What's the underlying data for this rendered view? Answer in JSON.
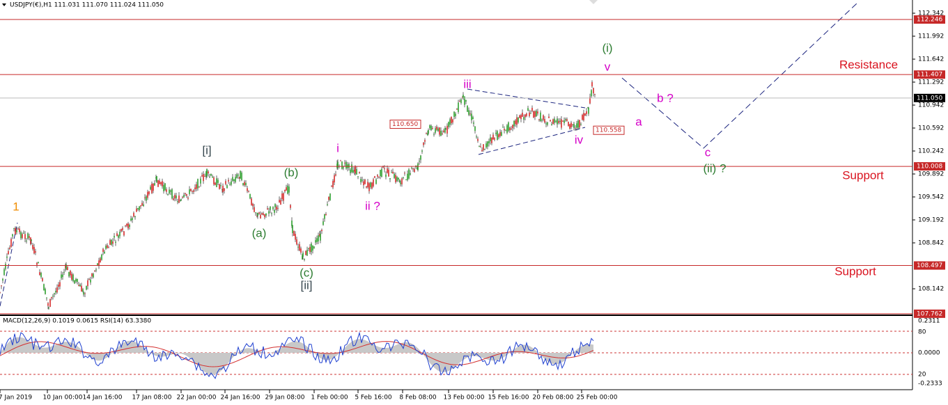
{
  "header": "USDJPY(€),H1  111.031 111.070 111.024 111.050",
  "price_axis": {
    "ticks": [
      112.342,
      111.992,
      111.642,
      111.292,
      110.942,
      110.592,
      110.242,
      109.892,
      109.542,
      109.192,
      108.842,
      108.142
    ]
  },
  "levels": [
    {
      "value": 112.246,
      "kind": "red"
    },
    {
      "value": 111.407,
      "kind": "red"
    },
    {
      "value": {
        "value": 111.05,
        "label": "111.050"
      },
      "kind": "current"
    },
    {
      "value": 110.008,
      "kind": "red"
    },
    {
      "value": 108.497,
      "kind": "red"
    },
    {
      "value": 107.762,
      "kind": "red"
    }
  ],
  "price_notes": [
    {
      "value": 110.65,
      "label": "110.650"
    },
    110.558
  ],
  "zone_labels": [
    "Resistance",
    "Support",
    "Support"
  ],
  "wave_labels": [
    "1",
    "[i]",
    "(b)",
    "(a)",
    "(c)",
    "[ii]",
    "i",
    "ii ?",
    "iii",
    "iv",
    "v",
    "(i)",
    "a",
    "b ?",
    "c",
    "(ii) ?"
  ],
  "time_axis": [
    "7 Jan 2019",
    "10 Jan 00:00",
    "14 Jan 16:00",
    "17 Jan 08:00",
    "22 Jan 00:00",
    "24 Jan 16:00",
    "29 Jan 08:00",
    "1 Feb 00:00",
    "5 Feb 16:00",
    "8 Feb 08:00",
    "13 Feb 00:00",
    "15 Feb 16:00",
    "20 Feb 08:00",
    "25 Feb 00:00"
  ],
  "indicator": {
    "header": "MACD(12,26,9) 0.1019 0.0615  RSI(14) 63.3380",
    "axis": [
      "0.2311",
      "80",
      "0.0000",
      "20",
      "-0.2333"
    ]
  }
}
